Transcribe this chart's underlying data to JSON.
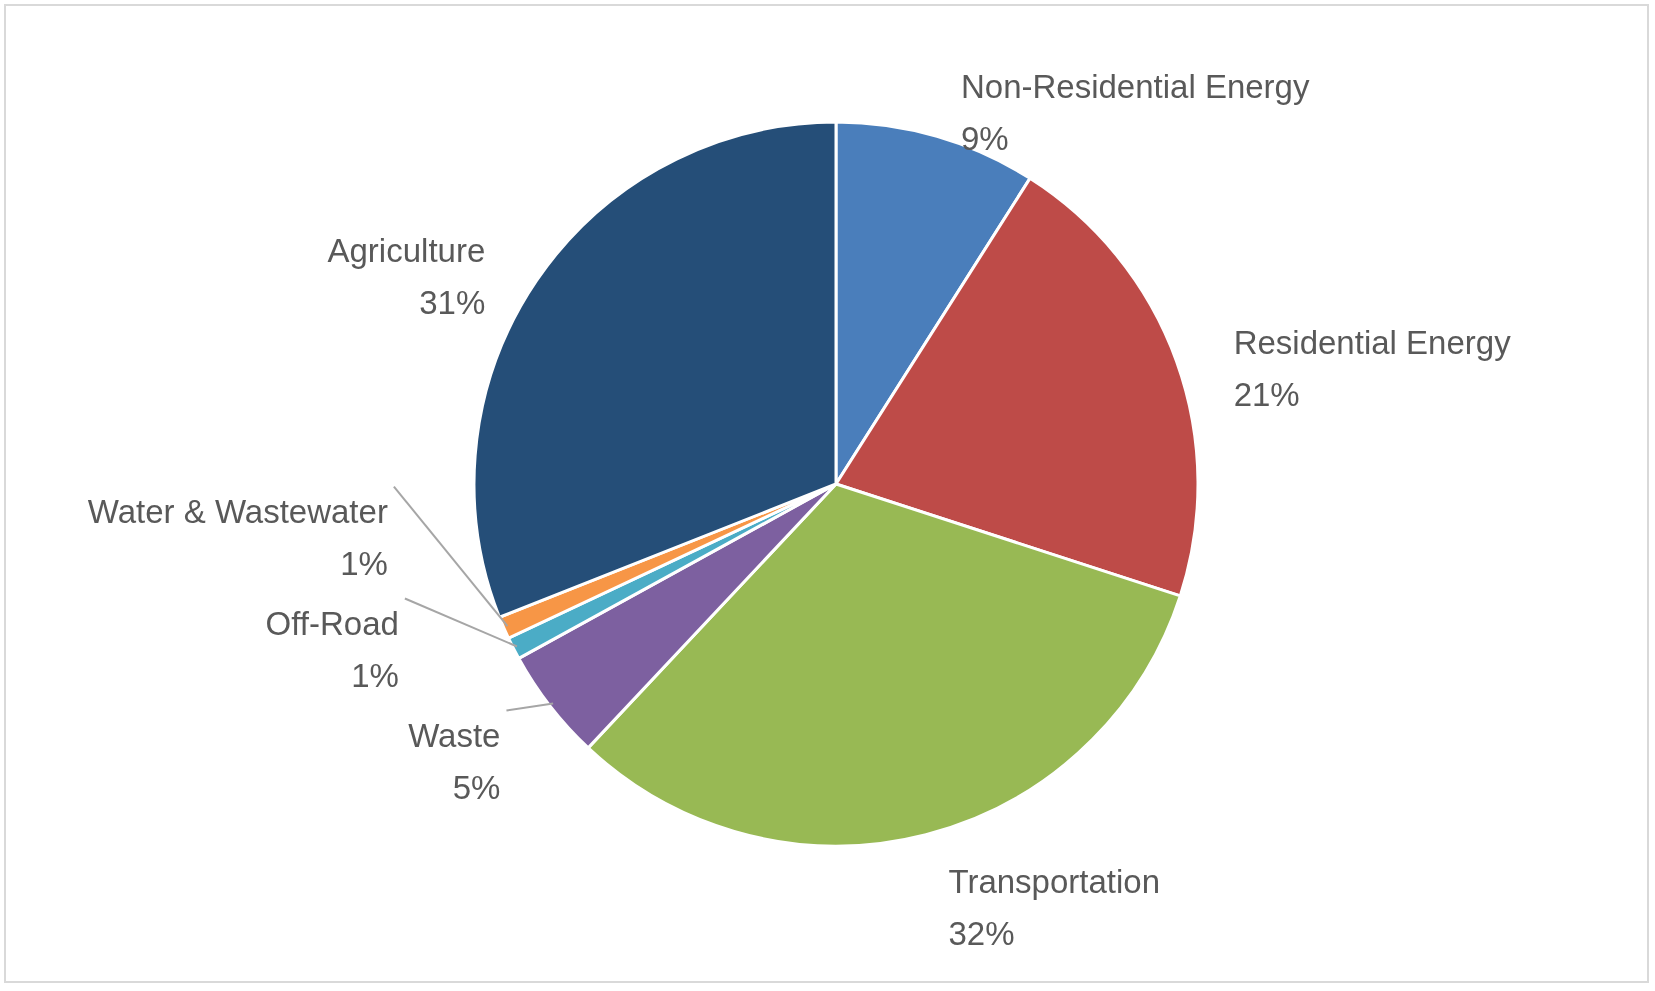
{
  "chart_data": {
    "type": "pie",
    "categories": [
      "Non-Residential Energy",
      "Residential Energy",
      "Transportation",
      "Waste",
      "Off-Road",
      "Water & Wastewater",
      "Agriculture"
    ],
    "values": [
      9,
      21,
      32,
      5,
      1,
      1,
      31
    ],
    "value_labels": [
      "9%",
      "21%",
      "32%",
      "5%",
      "1%",
      "1%",
      "31%"
    ],
    "colors": [
      "#4a7ebb",
      "#be4b48",
      "#98b954",
      "#7d60a0",
      "#4bacc6",
      "#f79646",
      "#254e78"
    ]
  }
}
